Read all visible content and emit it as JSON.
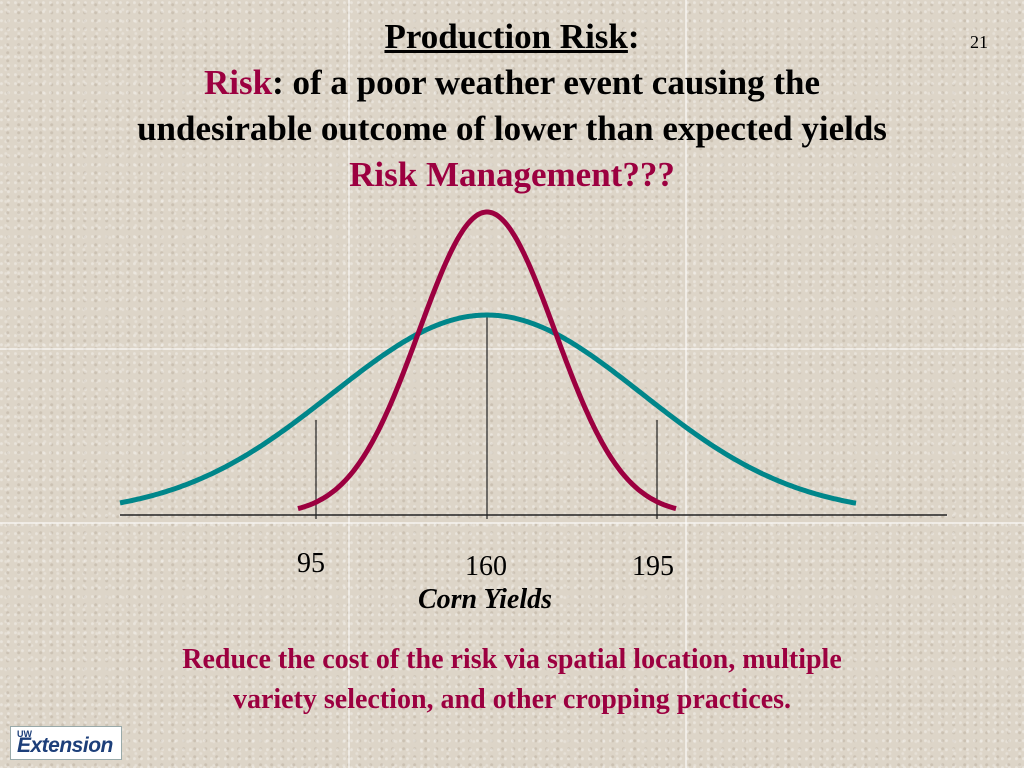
{
  "slide_number": "21",
  "title": {
    "heading": "Production Risk",
    "heading_colon": ":",
    "risk_word": "Risk",
    "risk_rest": ": of a poor weather event causing the",
    "line3": "undesirable outcome of lower than expected yields",
    "line4": "Risk Management???"
  },
  "axis": {
    "tick_labels": [
      "95",
      "160",
      "195"
    ],
    "title": "Corn Yields"
  },
  "footer": {
    "line1": "Reduce the cost of the risk via spatial location, multiple",
    "line2": "variety selection, and other cropping practices."
  },
  "logo": {
    "small": "UW",
    "main": "Extension"
  },
  "colors": {
    "narrow_curve": "#9c0040",
    "wide_curve": "#00868a",
    "accent_text": "#9c0040"
  },
  "curves": [
    {
      "label": "narrow",
      "peak_relative_height": 1.0
    },
    {
      "label": "wide",
      "peak_relative_height": 0.66
    }
  ]
}
